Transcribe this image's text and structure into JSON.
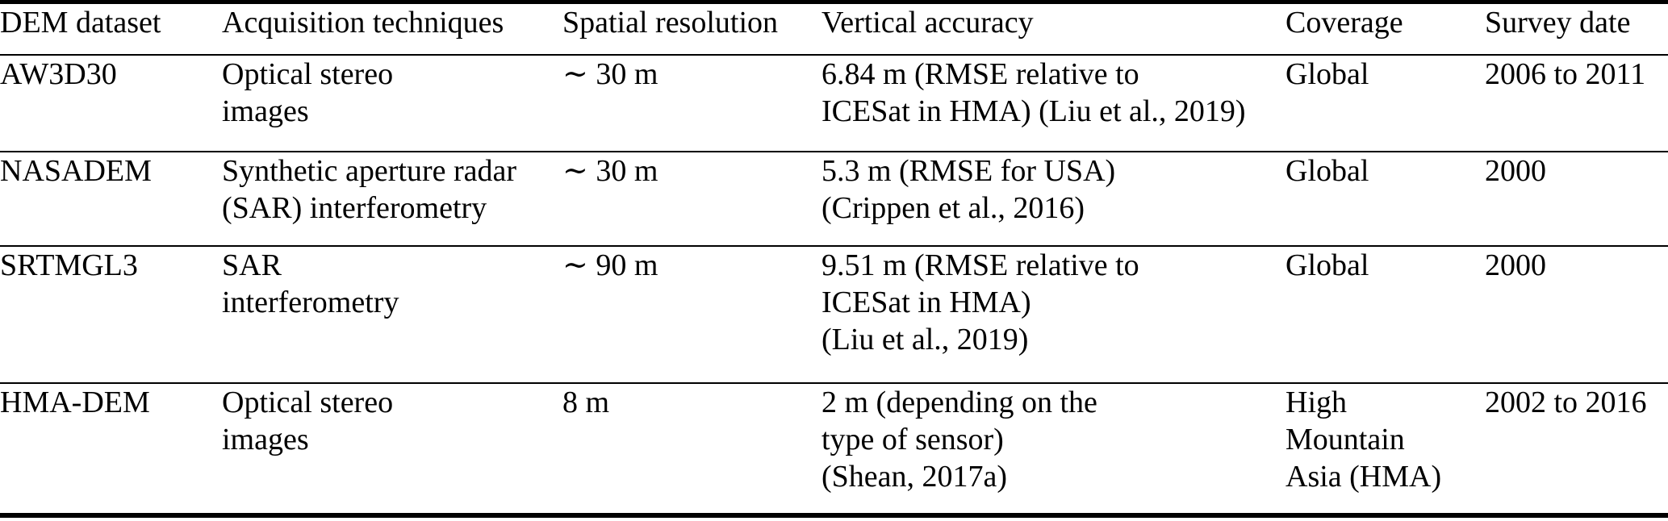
{
  "table": {
    "name": "DEM datasets comparison table",
    "colors": {
      "text": "#000000",
      "background": "#ffffff",
      "rule": "#000000"
    },
    "columns": [
      {
        "label": "DEM dataset"
      },
      {
        "label": "Acquisition techniques"
      },
      {
        "label": "Spatial resolution"
      },
      {
        "label": "Vertical accuracy"
      },
      {
        "label": "Coverage"
      },
      {
        "label": "Survey date"
      }
    ],
    "rows": [
      {
        "dataset": "AW3D30",
        "acquisition": [
          "Optical stereo",
          "images"
        ],
        "resolution": "∼ 30 m",
        "accuracy": [
          "6.84 m (RMSE relative to",
          "ICESat in HMA) (Liu et al., 2019)"
        ],
        "coverage": [
          "Global"
        ],
        "survey_date": "2006 to 2011"
      },
      {
        "dataset": "NASADEM",
        "acquisition": [
          "Synthetic aperture radar",
          "(SAR) interferometry"
        ],
        "resolution": "∼ 30 m",
        "accuracy": [
          "5.3 m (RMSE for USA)",
          "(Crippen et al., 2016)"
        ],
        "coverage": [
          "Global"
        ],
        "survey_date": "2000"
      },
      {
        "dataset": "SRTMGL3",
        "acquisition": [
          "SAR",
          "interferometry"
        ],
        "resolution": "∼ 90 m",
        "accuracy": [
          "9.51 m (RMSE relative to",
          "ICESat in HMA)",
          "(Liu et al., 2019)"
        ],
        "coverage": [
          "Global"
        ],
        "survey_date": "2000"
      },
      {
        "dataset": "HMA-DEM",
        "acquisition": [
          "Optical stereo",
          "images"
        ],
        "resolution": "8 m",
        "accuracy": [
          "2 m (depending on the",
          "type of sensor)",
          "(Shean, 2017a)"
        ],
        "coverage": [
          "High",
          "Mountain",
          "Asia (HMA)"
        ],
        "survey_date": "2002 to 2016"
      }
    ]
  }
}
